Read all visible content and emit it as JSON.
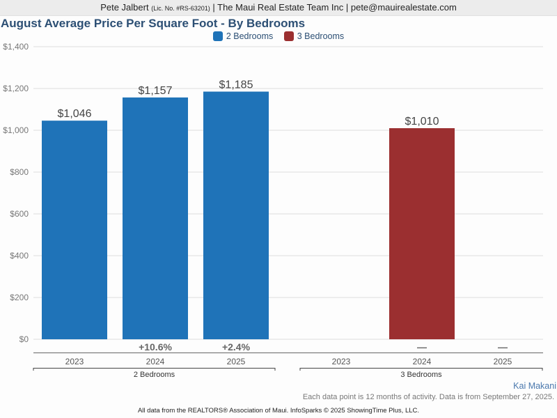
{
  "header": {
    "agent_name": "Pete Jalbert",
    "license": "(Lic. No. #RS-63201)",
    "company": "| The Maui Real Estate Team Inc | pete@mauirealestate.com"
  },
  "colors": {
    "series_2br": "#1f73b8",
    "series_3br": "#9b2f30",
    "title": "#2c4f74",
    "grid": "#dddddd",
    "tick_text": "#666666",
    "data_label": "#444444"
  },
  "chart_data": {
    "type": "bar",
    "title": "August Average Price Per Square Foot - By Bedrooms",
    "xlabel": "",
    "ylabel": "",
    "ylim": [
      0,
      1400
    ],
    "yticks": [
      0,
      200,
      400,
      600,
      800,
      1000,
      1200,
      1400
    ],
    "ytick_labels": [
      "$0",
      "$200",
      "$400",
      "$600",
      "$800",
      "$1,000",
      "$1,200",
      "$1,400"
    ],
    "grid": true,
    "legend_position": "top-center",
    "legend": [
      "2 Bedrooms",
      "3 Bedrooms"
    ],
    "groups": [
      {
        "name": "2 Bedrooms",
        "categories": [
          "2023",
          "2024",
          "2025"
        ],
        "values": [
          1046,
          1157,
          1185
        ],
        "data_labels": [
          "$1,046",
          "$1,157",
          "$1,185"
        ],
        "changes": [
          "",
          "+10.6%",
          "+2.4%"
        ]
      },
      {
        "name": "3 Bedrooms",
        "categories": [
          "2023",
          "2024",
          "2025"
        ],
        "values": [
          null,
          1010,
          null
        ],
        "data_labels": [
          "",
          "$1,010",
          ""
        ],
        "changes": [
          "",
          "—",
          "—"
        ]
      }
    ]
  },
  "footer": {
    "agent_link": "Kai Makani",
    "note": "Each data point is 12 months of activity. Data is from September 27, 2025.",
    "source": "All data from the REALTORS® Association of Maui. InfoSparks © 2025 ShowingTime Plus, LLC."
  }
}
